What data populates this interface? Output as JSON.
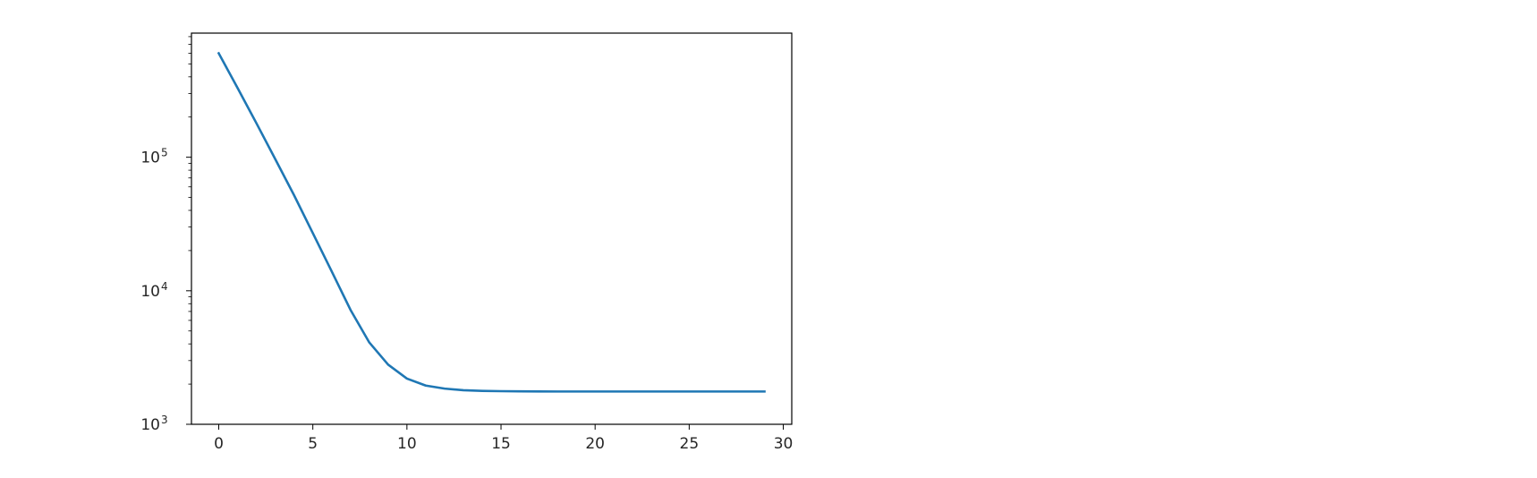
{
  "chart_data": {
    "type": "line",
    "title": "",
    "xlabel": "",
    "ylabel": "",
    "yscale": "log",
    "xlim": [
      -1.45,
      30.45
    ],
    "ylim": [
      1000,
      850000
    ],
    "grid": false,
    "x_ticks": [
      {
        "value": 0,
        "label": "0"
      },
      {
        "value": 5,
        "label": "5"
      },
      {
        "value": 10,
        "label": "10"
      },
      {
        "value": 15,
        "label": "15"
      },
      {
        "value": 20,
        "label": "20"
      },
      {
        "value": 25,
        "label": "25"
      },
      {
        "value": 30,
        "label": "30"
      }
    ],
    "y_ticks": [
      {
        "value": 1000,
        "base": "10",
        "exponent": "3"
      },
      {
        "value": 10000,
        "base": "10",
        "exponent": "4"
      },
      {
        "value": 100000,
        "base": "10",
        "exponent": "5"
      }
    ],
    "series": [
      {
        "color": "#1f77b4",
        "x": [
          0,
          1,
          2,
          3,
          4,
          5,
          6,
          7,
          8,
          9,
          10,
          11,
          12,
          13,
          14,
          15,
          16,
          17,
          18,
          19,
          20,
          21,
          22,
          23,
          24,
          25,
          26,
          27,
          28,
          29
        ],
        "y": [
          600000,
          330000,
          180000,
          97000,
          52000,
          27000,
          14000,
          7200,
          4100,
          2800,
          2200,
          1950,
          1850,
          1800,
          1780,
          1770,
          1765,
          1762,
          1760,
          1760,
          1760,
          1760,
          1760,
          1760,
          1760,
          1760,
          1760,
          1760,
          1760,
          1760
        ]
      }
    ]
  }
}
